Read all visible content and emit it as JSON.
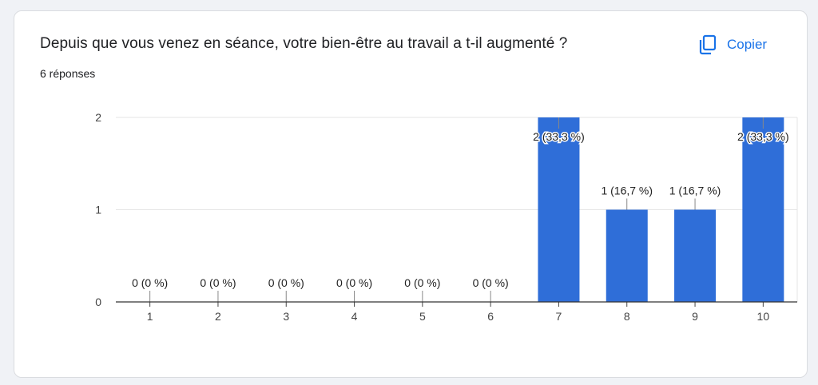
{
  "question": {
    "title": "Depuis que vous venez en séance, votre bien-être au travail a t-il augmenté ?",
    "responses": "6 réponses"
  },
  "toolbar": {
    "copy_label": "Copier",
    "copy_icon": "copy-icon"
  },
  "colors": {
    "bar": "#2f6ed8",
    "accent": "#1a73e8"
  },
  "chart_data": {
    "type": "bar",
    "categories": [
      "1",
      "2",
      "3",
      "4",
      "5",
      "6",
      "7",
      "8",
      "9",
      "10"
    ],
    "values": [
      0,
      0,
      0,
      0,
      0,
      0,
      2,
      1,
      1,
      2
    ],
    "data_labels": [
      "0 (0 %)",
      "0 (0 %)",
      "0 (0 %)",
      "0 (0 %)",
      "0 (0 %)",
      "0 (0 %)",
      "2 (33,3 %)",
      "1 (16,7 %)",
      "1 (16,7 %)",
      "2 (33,3 %)"
    ],
    "y_ticks": [
      "0",
      "1",
      "2"
    ],
    "ylim": [
      0,
      2
    ],
    "grid": true,
    "title": "",
    "xlabel": "",
    "ylabel": ""
  }
}
